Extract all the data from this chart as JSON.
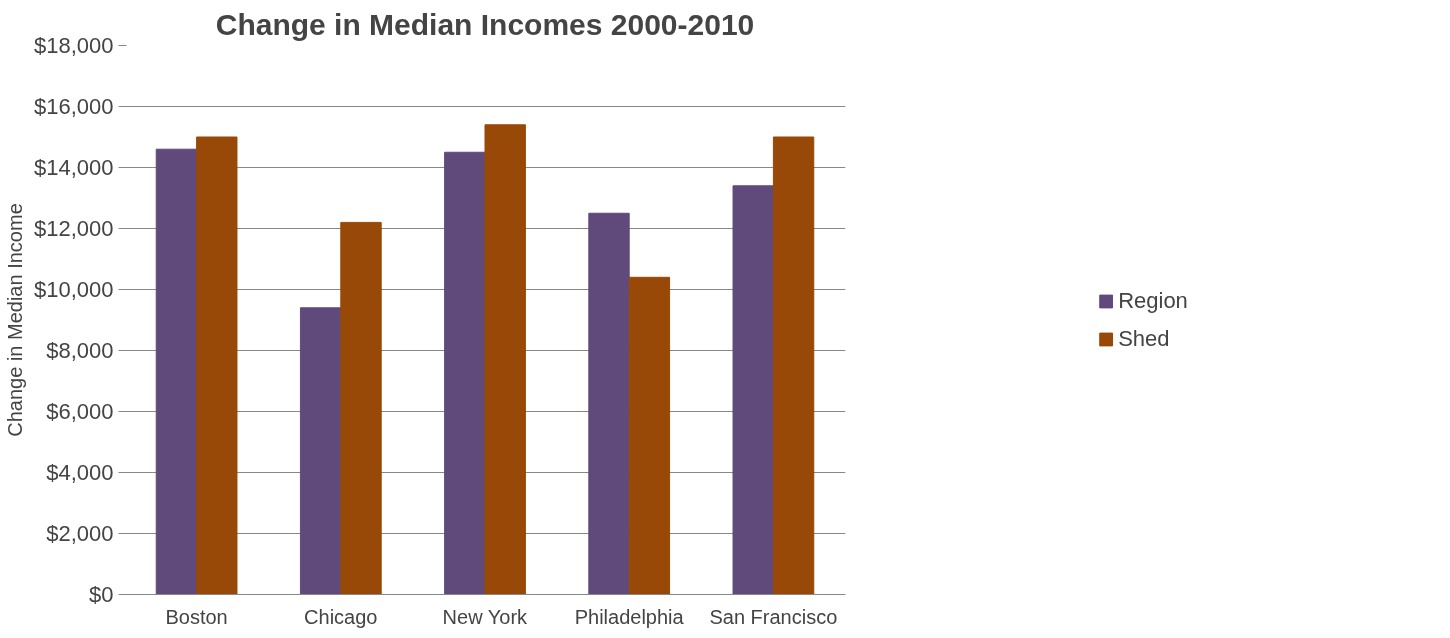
{
  "chart_data": {
    "type": "bar",
    "title": "Change in Median Incomes 2000-2010",
    "ylabel": "Change in Median Income",
    "categories": [
      "Boston",
      "Chicago",
      "New York",
      "Philadelphia",
      "San Francisco"
    ],
    "series": [
      {
        "name": "Region",
        "color": "#604a7b",
        "values": [
          14600,
          9400,
          14500,
          12500,
          13400
        ]
      },
      {
        "name": "Shed",
        "color": "#984807",
        "values": [
          15000,
          12200,
          15400,
          10400,
          15000
        ]
      }
    ],
    "ylim": [
      0,
      18000
    ],
    "yticks": [
      {
        "value": 0,
        "label": "$0"
      },
      {
        "value": 2000,
        "label": "$2,000"
      },
      {
        "value": 4000,
        "label": "$4,000"
      },
      {
        "value": 6000,
        "label": "$6,000"
      },
      {
        "value": 8000,
        "label": "$8,000"
      },
      {
        "value": 10000,
        "label": "$10,000"
      },
      {
        "value": 12000,
        "label": "$12,000"
      },
      {
        "value": 14000,
        "label": "$14,000"
      },
      {
        "value": 16000,
        "label": "$16,000"
      },
      {
        "value": 18000,
        "label": "$18,000"
      }
    ],
    "grid": "y",
    "legend": "right"
  }
}
